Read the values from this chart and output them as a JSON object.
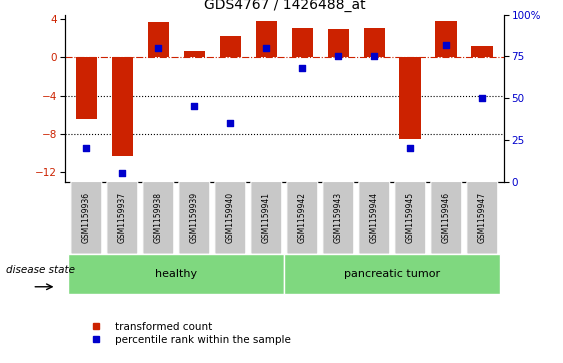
{
  "title": "GDS4767 / 1426488_at",
  "samples": [
    "GSM1159936",
    "GSM1159937",
    "GSM1159938",
    "GSM1159939",
    "GSM1159940",
    "GSM1159941",
    "GSM1159942",
    "GSM1159943",
    "GSM1159944",
    "GSM1159945",
    "GSM1159946",
    "GSM1159947"
  ],
  "bar_values": [
    -6.5,
    -10.3,
    3.7,
    0.7,
    2.2,
    3.8,
    3.1,
    3.0,
    3.1,
    -8.5,
    3.8,
    1.2
  ],
  "percentile_values": [
    20,
    5,
    80,
    45,
    35,
    80,
    68,
    75,
    75,
    20,
    82,
    50
  ],
  "bar_color": "#CC2200",
  "dot_color": "#0000CC",
  "ylim_left": [
    -13,
    4.5
  ],
  "ylim_right": [
    0,
    100
  ],
  "yticks_left": [
    4,
    0,
    -4,
    -8,
    -12
  ],
  "yticks_right": [
    100,
    75,
    50,
    25,
    0
  ],
  "dotted_lines": [
    -4,
    -8
  ],
  "group1_label": "healthy",
  "group2_label": "pancreatic tumor",
  "group1_indices": [
    0,
    1,
    2,
    3,
    4,
    5
  ],
  "group2_indices": [
    6,
    7,
    8,
    9,
    10,
    11
  ],
  "group_color": "#7FD87F",
  "disease_state_label": "disease state",
  "legend_bar_label": "transformed count",
  "legend_dot_label": "percentile rank within the sample",
  "title_fontsize": 10,
  "axis_fontsize": 7.5
}
